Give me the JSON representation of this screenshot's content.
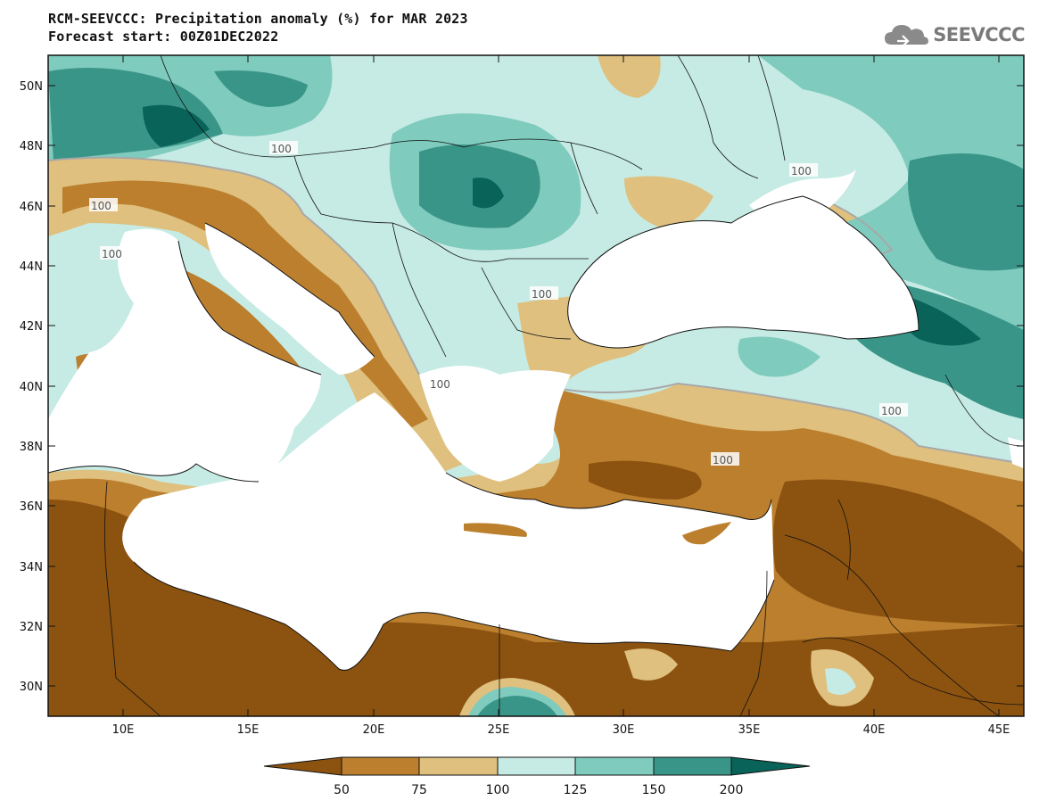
{
  "header": {
    "title": "RCM-SEEVCCC: Precipitation anomaly (%) for MAR 2023",
    "subtitle": "Forecast start: 00Z01DEC2022"
  },
  "logo": {
    "text": "SEEVCCC",
    "icon": "cloud-icon"
  },
  "map": {
    "lon_range": [
      7,
      46
    ],
    "lat_range": [
      29,
      51
    ],
    "lat_ticks": [
      "50N",
      "48N",
      "46N",
      "44N",
      "42N",
      "40N",
      "38N",
      "36N",
      "34N",
      "32N",
      "30N"
    ],
    "lon_ticks": [
      "10E",
      "15E",
      "20E",
      "25E",
      "30E",
      "35E",
      "40E",
      "45E"
    ],
    "contour_labels": [
      "100",
      "100",
      "100",
      "100",
      "100",
      "100",
      "100",
      "100"
    ]
  },
  "colorbar": {
    "labels": [
      "50",
      "75",
      "100",
      "125",
      "150",
      "200"
    ],
    "colors": [
      "#8c5210",
      "#bb7f2e",
      "#dfc07e",
      "#c6ebe4",
      "#7fcbbd",
      "#3a9589",
      "#0a6359"
    ]
  },
  "colors": {
    "sea": "#ffffff",
    "very_dry": "#8c5210",
    "dry": "#bb7f2e",
    "slightly_dry": "#dfc07e",
    "slightly_wet": "#c6ebe4",
    "wet": "#7fcbbd",
    "very_wet": "#3a9589",
    "extreme_wet": "#0a6359",
    "contour": "#a8a8a8"
  }
}
